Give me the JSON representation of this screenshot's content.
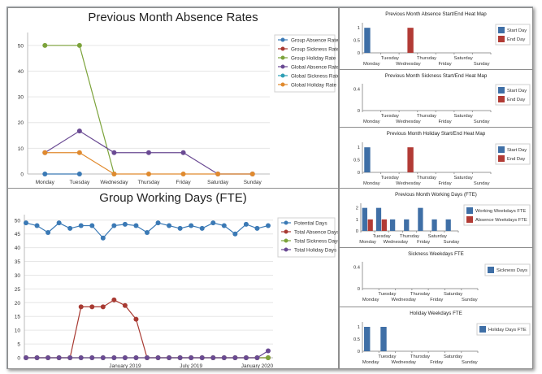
{
  "chart_data": [
    {
      "id": "absence-rates",
      "type": "line",
      "title": "Previous Month Absence Rates",
      "categories": [
        "Monday",
        "Tuesday",
        "Wednesday",
        "Thursday",
        "Friday",
        "Saturday",
        "Sunday"
      ],
      "ylim": [
        0,
        55
      ],
      "yticks": [
        0,
        10,
        20,
        30,
        40,
        50
      ],
      "series": [
        {
          "name": "Group Absence Rate",
          "color": "#3a79b5",
          "values": [
            0,
            0,
            null,
            null,
            null,
            null,
            null
          ]
        },
        {
          "name": "Group Sickness Rate",
          "color": "#a83a32",
          "values": [
            null,
            null,
            null,
            null,
            null,
            null,
            null
          ]
        },
        {
          "name": "Group Holiday Rate",
          "color": "#7ca33b",
          "values": [
            50,
            50,
            0,
            null,
            null,
            null,
            null
          ]
        },
        {
          "name": "Global Absence Rate",
          "color": "#6a4a93",
          "values": [
            8.3,
            16.7,
            8.3,
            8.3,
            8.3,
            0,
            0
          ]
        },
        {
          "name": "Global Sickness Rate",
          "color": "#2e9fb5",
          "values": [
            null,
            null,
            null,
            null,
            null,
            null,
            null
          ]
        },
        {
          "name": "Global Holiday Rate",
          "color": "#e08a2e",
          "values": [
            8.3,
            8.3,
            0,
            0,
            0,
            0,
            0
          ]
        }
      ]
    },
    {
      "id": "working-days",
      "type": "line",
      "title": "Group Working Days (FTE)",
      "xticks": [
        "January 2019",
        "July 2019",
        "January 2020"
      ],
      "ylim": [
        0,
        52
      ],
      "yticks": [
        0,
        5,
        10,
        15,
        20,
        25,
        30,
        35,
        40,
        45,
        50
      ],
      "series": [
        {
          "name": "Potential Days",
          "color": "#3a79b5",
          "values": [
            49,
            48,
            45.5,
            49,
            47,
            48,
            48,
            43.5,
            48,
            48.5,
            48,
            45.5,
            49,
            48,
            47,
            48,
            47,
            49,
            48,
            45,
            48.5,
            47,
            48
          ]
        },
        {
          "name": "Total Absence Days",
          "color": "#a83a32",
          "values": [
            0,
            0,
            0,
            0,
            0,
            18.5,
            18.5,
            18.5,
            21,
            19,
            14,
            0,
            0,
            0,
            0,
            0,
            0,
            0,
            0,
            0,
            0,
            0,
            0
          ]
        },
        {
          "name": "Total Sickness Days",
          "color": "#7ca33b",
          "values": [
            0,
            0,
            0,
            0,
            0,
            0,
            0,
            0,
            0,
            0,
            0,
            0,
            0,
            0,
            0,
            0,
            0,
            0,
            0,
            0,
            0,
            0,
            0
          ]
        },
        {
          "name": "Total Holiday Days",
          "color": "#6a4a93",
          "values": [
            0,
            0,
            0,
            0,
            0,
            0,
            0,
            0,
            0,
            0,
            0,
            0,
            0,
            0,
            0,
            0,
            0,
            0,
            0,
            0,
            0,
            0,
            2.5
          ]
        }
      ]
    },
    {
      "id": "absence-heatmap",
      "type": "bar",
      "title": "Previous Month Absence Start/End Heat Map",
      "categories": [
        "Monday",
        "Tuesday",
        "Wednesday",
        "Thursday",
        "Friday",
        "Saturday",
        "Sunday"
      ],
      "ylim": [
        0,
        1.2
      ],
      "yticks": [
        0,
        0.5,
        1
      ],
      "series": [
        {
          "name": "Start Day",
          "color": "#3f6fa6",
          "values": [
            1,
            0,
            0,
            0,
            0,
            0,
            0
          ]
        },
        {
          "name": "End Day",
          "color": "#b23b35",
          "values": [
            0,
            0,
            1,
            0,
            0,
            0,
            0
          ]
        }
      ]
    },
    {
      "id": "sickness-heatmap",
      "type": "bar",
      "title": "Previous Month Sickness Start/End Heat Map",
      "categories": [
        "Monday",
        "Tuesday",
        "Wednesday",
        "Thursday",
        "Friday",
        "Saturday",
        "Sunday"
      ],
      "ylim": [
        0,
        0.5
      ],
      "yticks": [
        0,
        0.4
      ],
      "series": [
        {
          "name": "Start Day",
          "color": "#3f6fa6",
          "values": [
            0,
            0,
            0,
            0,
            0,
            0,
            0
          ]
        },
        {
          "name": "End Day",
          "color": "#b23b35",
          "values": [
            0,
            0,
            0,
            0,
            0,
            0,
            0
          ]
        }
      ]
    },
    {
      "id": "holiday-heatmap",
      "type": "bar",
      "title": "Previous Month Holiday Start/End Heat Map",
      "categories": [
        "Monday",
        "Tuesday",
        "Wednesday",
        "Thursday",
        "Friday",
        "Saturday",
        "Sunday"
      ],
      "ylim": [
        0,
        1.2
      ],
      "yticks": [
        0,
        0.5,
        1
      ],
      "series": [
        {
          "name": "Start Day",
          "color": "#3f6fa6",
          "values": [
            1,
            0,
            0,
            0,
            0,
            0,
            0
          ]
        },
        {
          "name": "End Day",
          "color": "#b23b35",
          "values": [
            0,
            0,
            1,
            0,
            0,
            0,
            0
          ]
        }
      ]
    },
    {
      "id": "working-weekdays",
      "type": "bar",
      "title": "Previous Month Working Days (FTE)",
      "categories": [
        "Monday",
        "Tuesday",
        "Wednesday",
        "Thursday",
        "Friday",
        "Saturday",
        "Sunday"
      ],
      "ylim": [
        0,
        2.4
      ],
      "yticks": [
        0,
        1,
        2
      ],
      "series": [
        {
          "name": "Working Weekdays FTE",
          "color": "#3f6fa6",
          "values": [
            2,
            2,
            1,
            1,
            2,
            1,
            1
          ]
        },
        {
          "name": "Absence Weekdays FTE",
          "color": "#b23b35",
          "values": [
            1,
            1,
            0,
            0,
            0,
            0,
            0
          ]
        }
      ]
    },
    {
      "id": "sickness-weekdays",
      "type": "bar",
      "title": "Sickness Weekdays FTE",
      "categories": [
        "Monday",
        "Tuesday",
        "Wednesday",
        "Thursday",
        "Friday",
        "Saturday",
        "Sunday"
      ],
      "ylim": [
        0,
        0.5
      ],
      "yticks": [
        0,
        0.4
      ],
      "series": [
        {
          "name": "Sickness Days",
          "color": "#3f6fa6",
          "values": [
            0,
            0,
            0,
            0,
            0,
            0,
            0
          ]
        }
      ]
    },
    {
      "id": "holiday-weekdays",
      "type": "bar",
      "title": "Holiday Weekdays FTE",
      "categories": [
        "Monday",
        "Tuesday",
        "Wednesday",
        "Thursday",
        "Friday",
        "Saturday",
        "Sunday"
      ],
      "ylim": [
        0,
        1.2
      ],
      "yticks": [
        0,
        0.5,
        1
      ],
      "series": [
        {
          "name": "Holiday Days FTE",
          "color": "#3f6fa6",
          "values": [
            1,
            1,
            0,
            0,
            0,
            0,
            0
          ]
        }
      ]
    }
  ]
}
